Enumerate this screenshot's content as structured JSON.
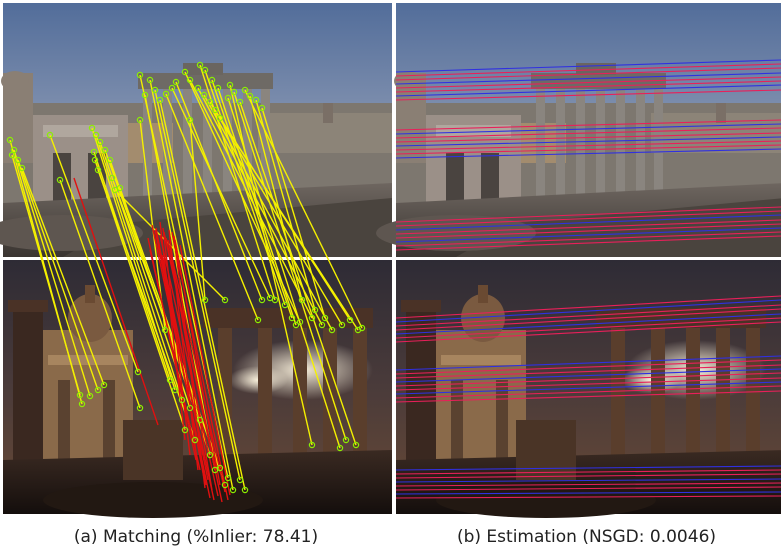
{
  "captions": {
    "a": "(a) Matching (%Inlier: 78.41)",
    "b": "(b) Estimation (NSGD: 0.0046)"
  },
  "colors": {
    "inlier_line": "#f4f000",
    "inlier_point": "#8cf000",
    "outlier_line": "#e01010",
    "epipolar_red": "#e8205a",
    "epipolar_blue": "#3030e0",
    "sky_day_top": "#5f7aa6",
    "sky_day_bottom": "#b8bfc8",
    "sky_night_top": "#3b3640",
    "sky_night_bottom": "#6a4a3a"
  }
}
